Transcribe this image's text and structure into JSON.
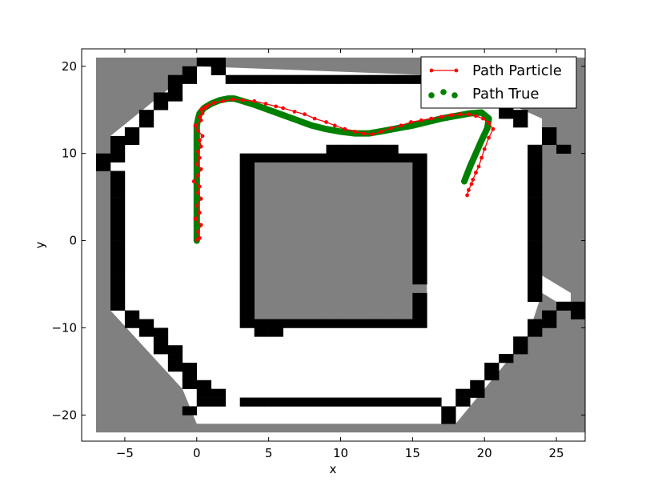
{
  "chart_data": {
    "type": "occupancy-grid-with-paths",
    "title": "",
    "xlabel": "x",
    "ylabel": "y",
    "xlim": [
      -8,
      27
    ],
    "ylim": [
      -23,
      22
    ],
    "xticks": [
      -5,
      0,
      5,
      10,
      15,
      20,
      25
    ],
    "yticks": [
      -20,
      -10,
      0,
      10,
      20
    ],
    "xtick_labels": [
      "−5",
      "0",
      "5",
      "10",
      "15",
      "20",
      "25"
    ],
    "ytick_labels": [
      "−20",
      "−10",
      "0",
      "10",
      "20"
    ],
    "grid": false,
    "legend_position": "top-right",
    "map": {
      "cell_size": 1,
      "colors": {
        "unknown": "#808080",
        "free": "#ffffff",
        "occupied": "#000000"
      },
      "unknown_regions": [
        {
          "x0": -7,
          "x1": 27,
          "y0": -22,
          "y1": 21
        }
      ],
      "free_regions": [
        {
          "poly": [
            [
              -6,
              8
            ],
            [
              -6,
              -8
            ],
            [
              -1,
              -17
            ],
            [
              0,
              -21
            ],
            [
              18,
              -21
            ],
            [
              23,
              -11
            ],
            [
              24,
              -6
            ],
            [
              26,
              -8
            ],
            [
              26,
              -6
            ],
            [
              24,
              -4
            ],
            [
              24,
              14
            ],
            [
              20,
              17
            ],
            [
              16,
              19
            ],
            [
              0,
              20
            ],
            [
              -6,
              12
            ]
          ]
        }
      ],
      "inner_gray": {
        "x0": 3,
        "x1": 16,
        "y0": -10,
        "y1": 10
      },
      "occupied_cells": [
        [
          0,
          20
        ],
        [
          1,
          20
        ],
        [
          1,
          19
        ],
        [
          -1,
          19
        ],
        [
          -1,
          18
        ],
        [
          -2,
          18
        ],
        [
          -2,
          17
        ],
        [
          -2,
          16
        ],
        [
          -3,
          16
        ],
        [
          -3,
          15
        ],
        [
          -4,
          14
        ],
        [
          -4,
          13
        ],
        [
          -5,
          12
        ],
        [
          -5,
          11
        ],
        [
          -6,
          11
        ],
        [
          -6,
          10
        ],
        [
          -6,
          9
        ],
        [
          -7,
          9
        ],
        [
          -7,
          8
        ],
        [
          -6,
          7
        ],
        [
          -6,
          6
        ],
        [
          -6,
          5
        ],
        [
          -6,
          4
        ],
        [
          -6,
          3
        ],
        [
          -6,
          2
        ],
        [
          -6,
          1
        ],
        [
          -6,
          0
        ],
        [
          -6,
          -1
        ],
        [
          -6,
          -2
        ],
        [
          -6,
          -3
        ],
        [
          -6,
          -4
        ],
        [
          -6,
          -5
        ],
        [
          -6,
          -6
        ],
        [
          -6,
          -7
        ],
        [
          -6,
          -8
        ],
        [
          -5,
          -9
        ],
        [
          -5,
          -10
        ],
        [
          -4,
          -10
        ],
        [
          -4,
          -11
        ],
        [
          -3,
          -11
        ],
        [
          -3,
          -12
        ],
        [
          -3,
          -13
        ],
        [
          -2,
          -13
        ],
        [
          -2,
          -14
        ],
        [
          -2,
          -15
        ],
        [
          -1,
          -15
        ],
        [
          -1,
          -16
        ],
        [
          -1,
          -17
        ],
        [
          0,
          -17
        ],
        [
          0,
          -18
        ],
        [
          0,
          -19
        ],
        [
          1,
          -18
        ],
        [
          1,
          -19
        ],
        [
          -1,
          -20
        ],
        [
          2,
          18
        ],
        [
          3,
          18
        ],
        [
          4,
          18
        ],
        [
          5,
          18
        ],
        [
          6,
          18
        ],
        [
          7,
          18
        ],
        [
          8,
          18
        ],
        [
          9,
          18
        ],
        [
          10,
          18
        ],
        [
          11,
          18
        ],
        [
          12,
          18
        ],
        [
          13,
          18
        ],
        [
          14,
          18
        ],
        [
          15,
          18
        ],
        [
          16,
          18
        ],
        [
          3,
          -19
        ],
        [
          4,
          -19
        ],
        [
          5,
          -19
        ],
        [
          6,
          -19
        ],
        [
          7,
          -19
        ],
        [
          8,
          -19
        ],
        [
          9,
          -19
        ],
        [
          10,
          -19
        ],
        [
          11,
          -19
        ],
        [
          12,
          -19
        ],
        [
          13,
          -19
        ],
        [
          14,
          -19
        ],
        [
          15,
          -19
        ],
        [
          16,
          -19
        ],
        [
          17,
          -20
        ],
        [
          17,
          -21
        ],
        [
          18,
          -19
        ],
        [
          18,
          -18
        ],
        [
          19,
          -18
        ],
        [
          19,
          -17
        ],
        [
          20,
          -16
        ],
        [
          20,
          -15
        ],
        [
          21,
          -14
        ],
        [
          22,
          -13
        ],
        [
          22,
          -12
        ],
        [
          23,
          -11
        ],
        [
          23,
          -10
        ],
        [
          24,
          -9
        ],
        [
          24,
          -10
        ],
        [
          25,
          -8
        ],
        [
          26,
          -8
        ],
        [
          26,
          -9
        ],
        [
          23,
          -7
        ],
        [
          23,
          -6
        ],
        [
          23,
          -5
        ],
        [
          23,
          -4
        ],
        [
          23,
          -3
        ],
        [
          23,
          -2
        ],
        [
          23,
          -1
        ],
        [
          23,
          0
        ],
        [
          23,
          1
        ],
        [
          23,
          2
        ],
        [
          23,
          3
        ],
        [
          23,
          4
        ],
        [
          23,
          5
        ],
        [
          23,
          6
        ],
        [
          23,
          7
        ],
        [
          23,
          8
        ],
        [
          23,
          9
        ],
        [
          23,
          10
        ],
        [
          24,
          11
        ],
        [
          25,
          10
        ],
        [
          24,
          12
        ],
        [
          22,
          13
        ],
        [
          22,
          14
        ],
        [
          21,
          14
        ],
        [
          21,
          15
        ],
        [
          20,
          16
        ],
        [
          3,
          9
        ],
        [
          4,
          9
        ],
        [
          5,
          9
        ],
        [
          6,
          9
        ],
        [
          7,
          9
        ],
        [
          8,
          9
        ],
        [
          9,
          9
        ],
        [
          10,
          9
        ],
        [
          11,
          9
        ],
        [
          12,
          9
        ],
        [
          13,
          9
        ],
        [
          14,
          9
        ],
        [
          15,
          9
        ],
        [
          9,
          10
        ],
        [
          10,
          10
        ],
        [
          11,
          10
        ],
        [
          12,
          10
        ],
        [
          13,
          10
        ],
        [
          3,
          8
        ],
        [
          3,
          7
        ],
        [
          3,
          6
        ],
        [
          3,
          5
        ],
        [
          3,
          4
        ],
        [
          3,
          3
        ],
        [
          3,
          2
        ],
        [
          3,
          1
        ],
        [
          3,
          0
        ],
        [
          3,
          -1
        ],
        [
          3,
          -2
        ],
        [
          3,
          -3
        ],
        [
          3,
          -4
        ],
        [
          3,
          -5
        ],
        [
          3,
          -6
        ],
        [
          3,
          -7
        ],
        [
          3,
          -8
        ],
        [
          3,
          -9
        ],
        [
          3,
          -10
        ],
        [
          15,
          8
        ],
        [
          15,
          7
        ],
        [
          15,
          6
        ],
        [
          15,
          5
        ],
        [
          15,
          4
        ],
        [
          15,
          3
        ],
        [
          15,
          2
        ],
        [
          15,
          1
        ],
        [
          15,
          0
        ],
        [
          15,
          -1
        ],
        [
          15,
          -2
        ],
        [
          15,
          -3
        ],
        [
          15,
          -4
        ],
        [
          15,
          -5
        ],
        [
          15,
          -7
        ],
        [
          15,
          -8
        ],
        [
          15,
          -9
        ],
        [
          4,
          -10
        ],
        [
          5,
          -10
        ],
        [
          6,
          -10
        ],
        [
          7,
          -10
        ],
        [
          8,
          -10
        ],
        [
          9,
          -10
        ],
        [
          10,
          -10
        ],
        [
          11,
          -10
        ],
        [
          12,
          -10
        ],
        [
          13,
          -10
        ],
        [
          14,
          -10
        ],
        [
          15,
          -10
        ],
        [
          4,
          -11
        ],
        [
          5,
          -11
        ]
      ]
    },
    "series": [
      {
        "name": "Path Particle",
        "style": "line-with-markers",
        "color": "#ff0000",
        "x": [
          0.0,
          0.2,
          0.1,
          0.3,
          -0.1,
          0.2,
          0.0,
          0.3,
          0.1,
          0.2,
          -0.2,
          0.1,
          0.3,
          0.0,
          0.2,
          0.1,
          0.3,
          0.2,
          0.4,
          0.1,
          -0.1,
          0.3,
          0.2,
          0.4,
          0.3,
          0.5,
          0.8,
          0.6,
          1.2,
          1.8,
          2.5,
          3.2,
          4.0,
          4.8,
          5.5,
          6.0,
          6.8,
          7.5,
          8.2,
          9.0,
          9.6,
          10.3,
          11.0,
          11.6,
          12.2,
          12.8,
          13.5,
          14.2,
          14.9,
          15.6,
          16.3,
          17.0,
          17.7,
          18.3,
          18.9,
          19.4,
          19.9,
          20.3,
          20.6,
          20.3,
          20.0,
          19.8,
          19.6,
          19.4,
          19.2,
          19.1,
          18.9,
          18.8
        ],
        "y": [
          0.1,
          0.3,
          1.0,
          1.8,
          2.5,
          3.2,
          4.0,
          4.8,
          5.5,
          6.2,
          6.8,
          7.5,
          8.2,
          8.8,
          9.5,
          10.2,
          10.8,
          11.5,
          12.0,
          12.6,
          13.2,
          13.8,
          14.2,
          14.6,
          15.0,
          15.2,
          15.5,
          15.3,
          15.8,
          16.0,
          16.2,
          16.1,
          16.0,
          15.7,
          15.4,
          15.2,
          14.8,
          14.5,
          14.0,
          13.6,
          13.2,
          12.8,
          12.5,
          12.3,
          12.2,
          12.5,
          12.9,
          13.2,
          13.6,
          13.8,
          14.0,
          14.2,
          14.4,
          14.5,
          14.5,
          14.3,
          14.0,
          13.5,
          12.8,
          11.8,
          10.5,
          9.5,
          8.5,
          7.8,
          7.0,
          6.5,
          5.8,
          5.2
        ]
      },
      {
        "name": "Path True",
        "style": "thick-dots",
        "color": "#008000",
        "x": [
          0.0,
          0.0,
          0.0,
          0.0,
          0.0,
          0.0,
          0.0,
          0.0,
          0.1,
          0.2,
          0.5,
          1.0,
          1.6,
          2.2,
          2.6,
          3.0,
          4.0,
          5.0,
          6.0,
          7.0,
          8.0,
          9.0,
          10.0,
          11.0,
          12.0,
          13.0,
          14.0,
          15.0,
          16.0,
          17.0,
          18.0,
          19.0,
          19.8,
          20.3,
          20.2,
          19.8,
          19.4,
          19.0,
          18.6
        ],
        "y": [
          0.0,
          2.0,
          4.0,
          6.0,
          8.0,
          10.0,
          12.0,
          13.2,
          14.0,
          14.6,
          15.2,
          15.7,
          16.1,
          16.3,
          16.3,
          16.1,
          15.6,
          15.0,
          14.4,
          13.8,
          13.2,
          12.8,
          12.5,
          12.3,
          12.3,
          12.6,
          12.9,
          13.2,
          13.6,
          14.0,
          14.3,
          14.6,
          14.7,
          14.0,
          12.9,
          11.5,
          10.0,
          8.5,
          6.8
        ]
      }
    ],
    "legend": [
      {
        "label": "Path Particle",
        "marker": "line-dot",
        "color": "#ff0000"
      },
      {
        "label": "Path True",
        "marker": "dots",
        "color": "#008000"
      }
    ]
  }
}
